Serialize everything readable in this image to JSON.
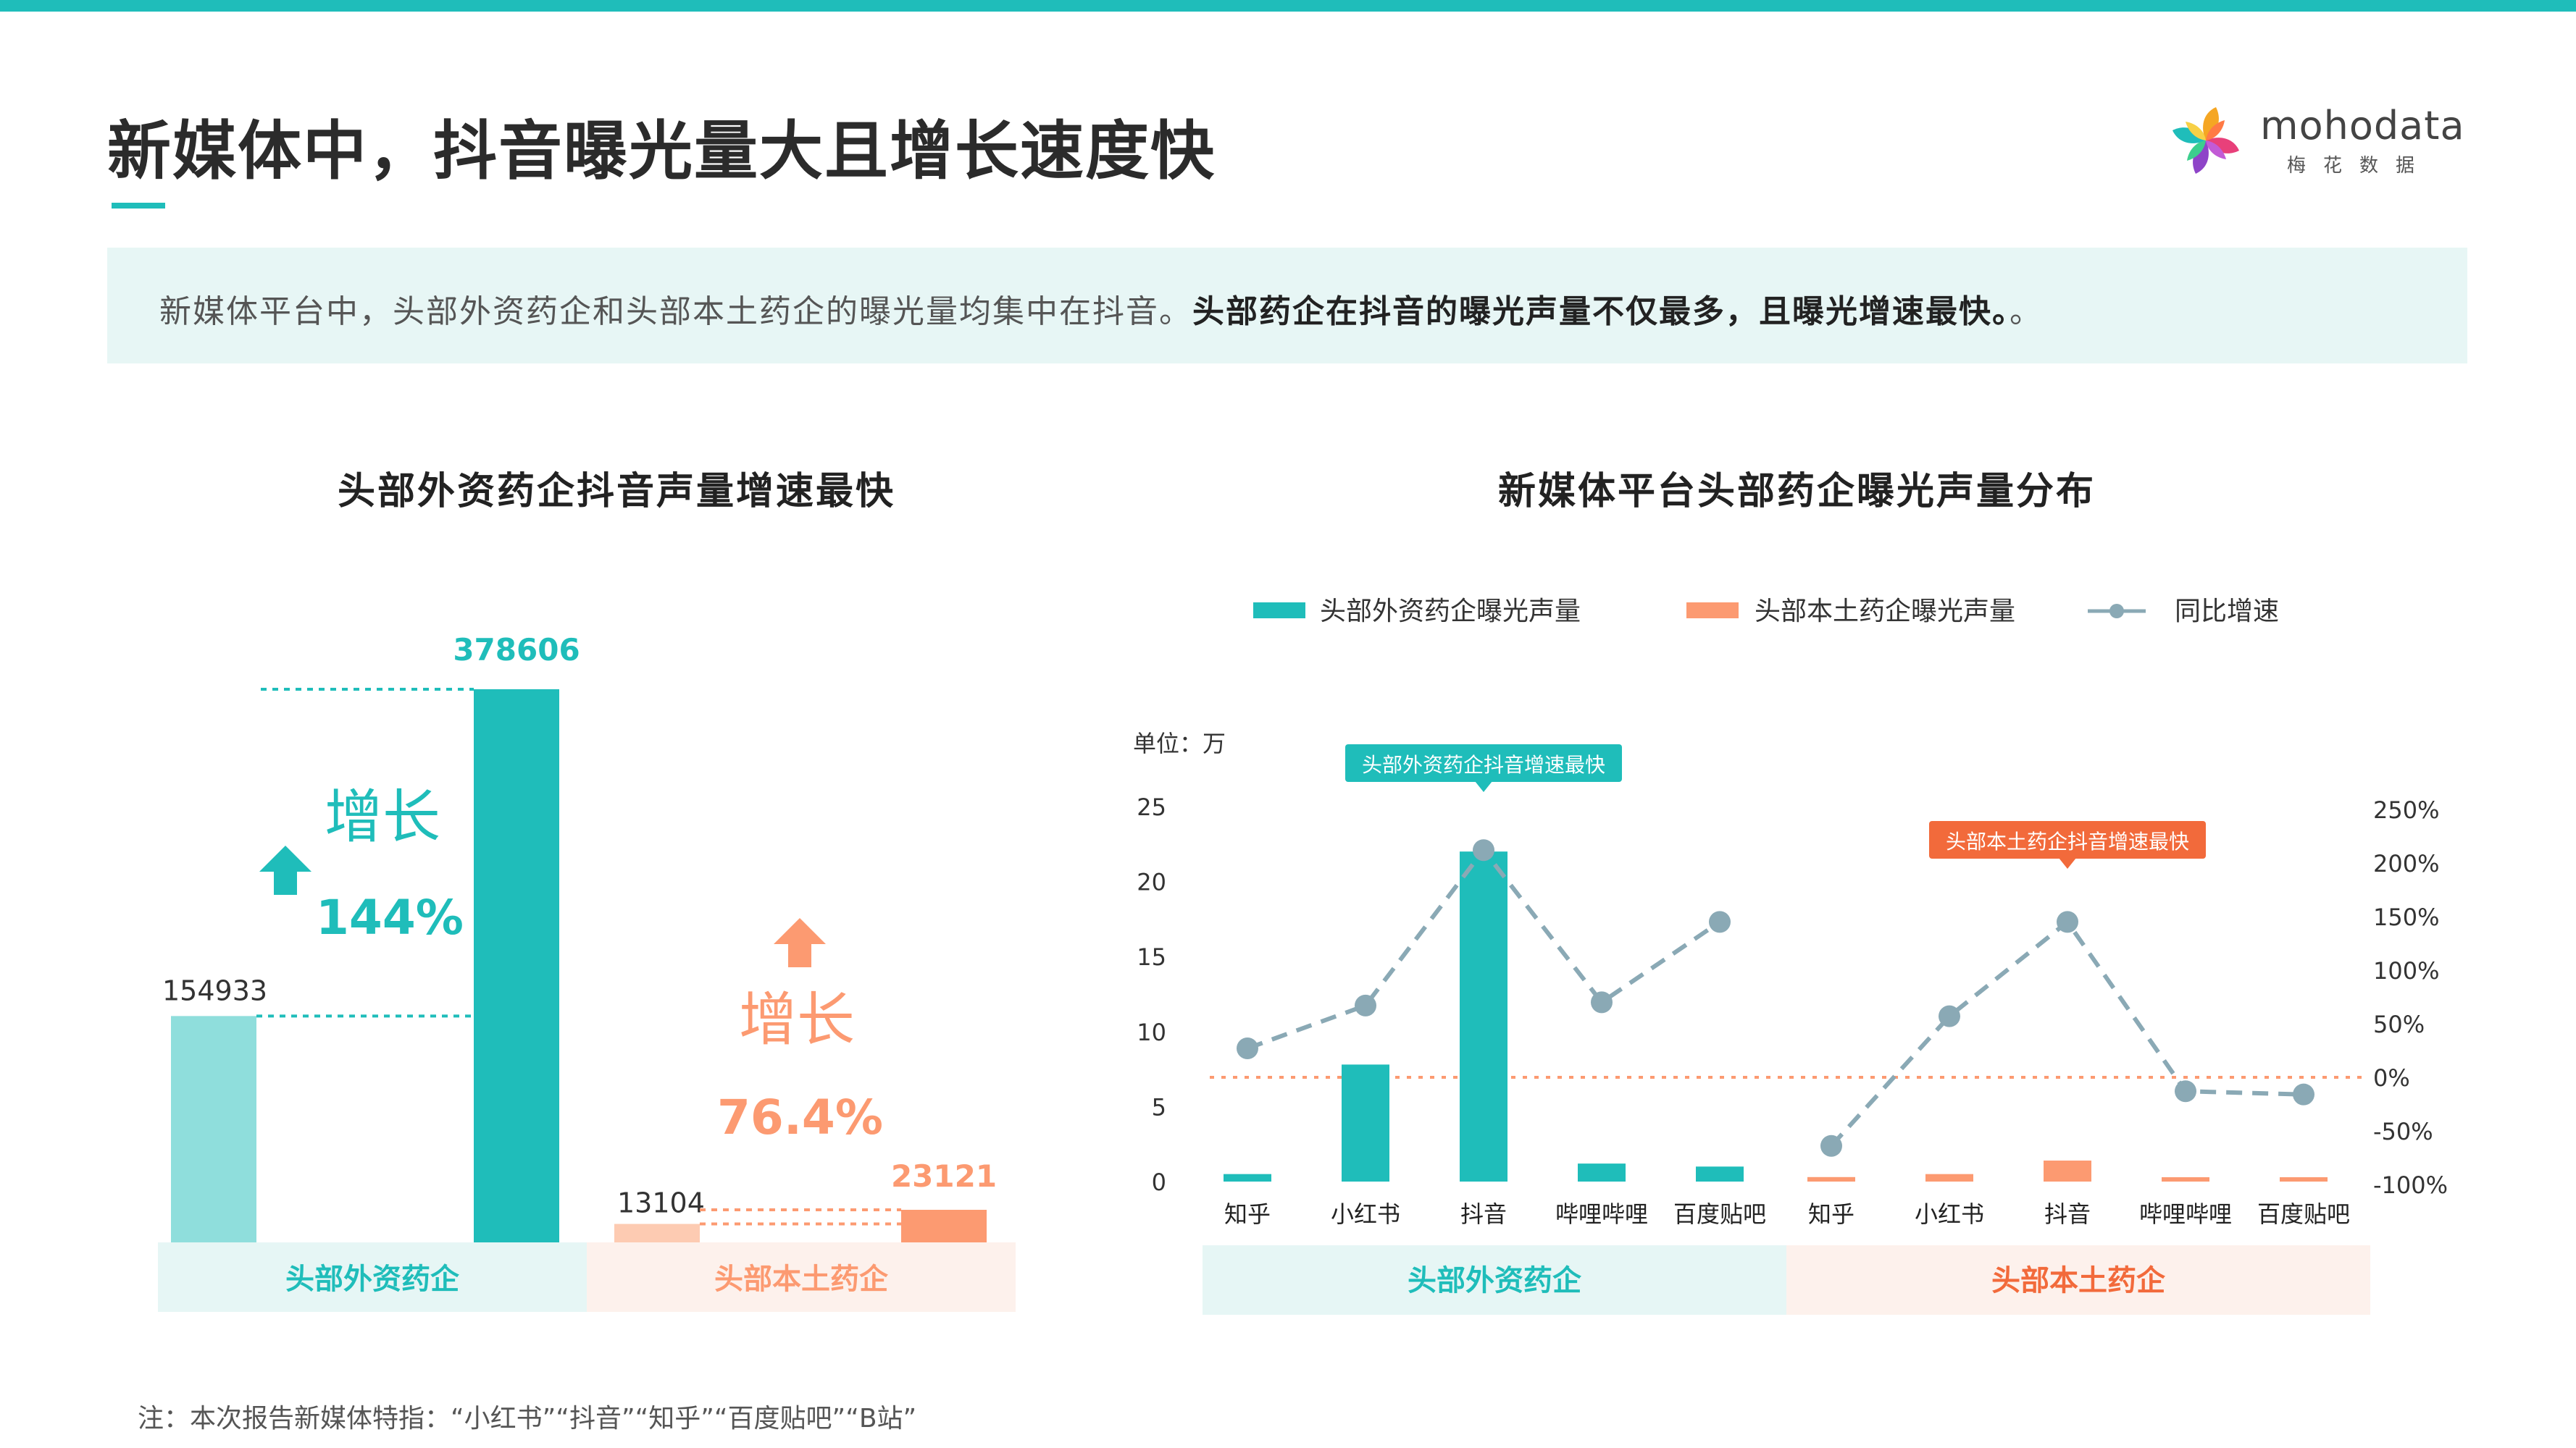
{
  "page": {
    "title": "新媒体中，抖音曝光量大且增长速度快",
    "summary_normal": "新媒体平台中，头部外资药企和头部本土药企的曝光量均集中在抖音。",
    "summary_bold": "头部药企在抖音的曝光声量不仅最多，且曝光增速最快。",
    "note": "注：本次报告新媒体特指：“小红书”“抖音”“知乎”“百度贴吧”“B站”"
  },
  "logo": {
    "word_a": "moho",
    "word_b": "data",
    "sub": "梅花数据"
  },
  "colors": {
    "teal": "#1fbdba",
    "teal_light": "#8fdedc",
    "orange": "#fc9a71",
    "orange_light": "#fdcbb2",
    "orange_dark": "#f26a3b",
    "grey_line": "#8aa9b5",
    "teal_bg": "#e6f6f5",
    "orange_bg": "#fdf1ec"
  },
  "chart_data": [
    {
      "type": "bar",
      "title": "头部外资药企抖音声量增速最快",
      "groups": [
        {
          "name": "头部外资药企",
          "values": [
            154933,
            378606
          ],
          "labels": [
            "154933",
            "378606"
          ],
          "growth_label": "增长",
          "growth_value": "144%"
        },
        {
          "name": "头部本土药企",
          "values": [
            13104,
            23121
          ],
          "labels": [
            "13104",
            "23121"
          ],
          "growth_label": "增长",
          "growth_value": "76.4%"
        }
      ]
    },
    {
      "type": "bar",
      "title": "新媒体平台头部药企曝光声量分布",
      "unit_label": "单位：万",
      "legend": [
        "头部外资药企曝光声量",
        "头部本土药企曝光声量",
        "同比增速"
      ],
      "categories": [
        "知乎",
        "小红书",
        "抖音",
        "哔哩哔哩",
        "百度贴吧"
      ],
      "y_left": {
        "min": 0,
        "max": 25,
        "ticks": [
          "0",
          "5",
          "10",
          "15",
          "20",
          "25"
        ]
      },
      "y_right": {
        "min": -100,
        "max": 250,
        "ticks": [
          "-100%",
          "-50%",
          "0%",
          "50%",
          "100%",
          "150%",
          "200%",
          "250%"
        ]
      },
      "groups": [
        {
          "name": "头部外资药企",
          "values": [
            0.5,
            7.8,
            22.0,
            1.2,
            1.0
          ],
          "growth": [
            27,
            67,
            212,
            70,
            145
          ],
          "callout": "头部外资药企抖音增速最快"
        },
        {
          "name": "头部本土药企",
          "values": [
            0.3,
            0.5,
            1.4,
            0.2,
            0.2
          ],
          "growth": [
            -64,
            57,
            145,
            -13,
            -16
          ],
          "callout": "头部本土药企抖音增速最快"
        }
      ]
    }
  ]
}
